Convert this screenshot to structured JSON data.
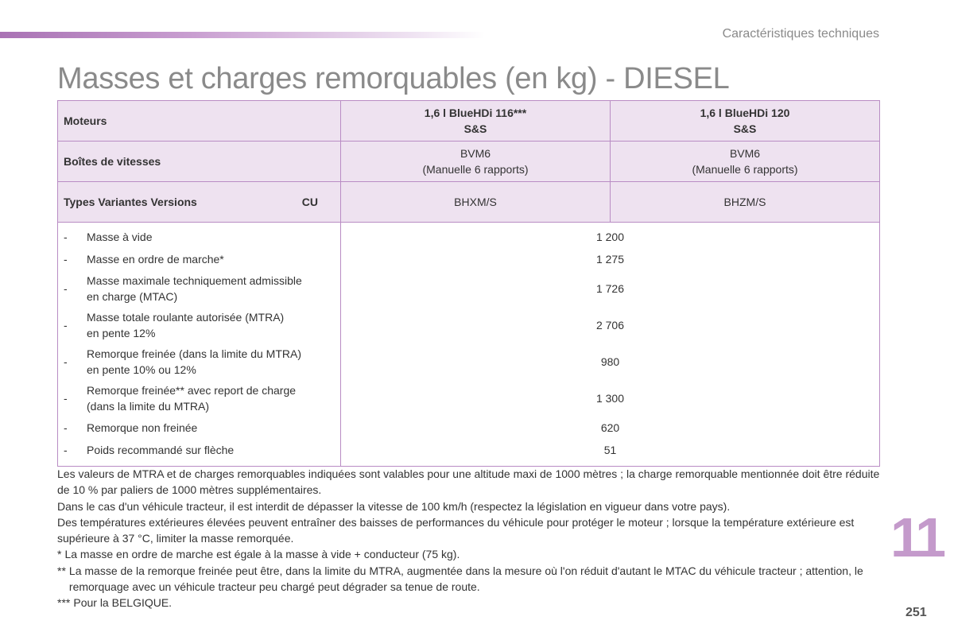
{
  "header": {
    "section": "Caractéristiques techniques",
    "title": "Masses et charges remorquables (en kg) - DIESEL"
  },
  "table": {
    "engines_label": "Moteurs",
    "engine1": [
      "1,6 l BlueHDi 116***",
      "S&S"
    ],
    "engine2": [
      "1,6 l BlueHDi 120",
      "S&S"
    ],
    "gearbox_label": "Boîtes de vitesses",
    "gearbox1": [
      "BVM6",
      "(Manuelle 6 rapports)"
    ],
    "gearbox2": [
      "BVM6",
      "(Manuelle 6 rapports)"
    ],
    "types_label": "Types Variantes Versions",
    "types_suffix": "CU",
    "type1": "BHXM/S",
    "type2": "BHZM/S",
    "mass_rows": [
      {
        "dash": "-",
        "lines": [
          "Masse à vide"
        ],
        "value": "1 200"
      },
      {
        "dash": "-",
        "lines": [
          "Masse en ordre de marche*"
        ],
        "value": "1 275"
      },
      {
        "dash": "-",
        "lines": [
          "Masse maximale techniquement admissible",
          "en charge (MTAC)"
        ],
        "value": "1 726"
      },
      {
        "dash": "-",
        "lines": [
          "Masse totale roulante autorisée (MTRA)",
          "en pente 12%"
        ],
        "value": "2 706"
      },
      {
        "dash": "-",
        "lines": [
          "Remorque freinée (dans la limite du MTRA)",
          "en pente 10% ou 12%"
        ],
        "value": "980"
      },
      {
        "dash": "-",
        "lines": [
          "Remorque freinée** avec report de charge",
          "(dans la limite du MTRA)"
        ],
        "value": "1 300"
      },
      {
        "dash": "-",
        "lines": [
          "Remorque non freinée"
        ],
        "value": "620"
      },
      {
        "dash": "-",
        "lines": [
          "Poids recommandé sur flèche"
        ],
        "value": "51"
      }
    ]
  },
  "notes": {
    "p1": "Les valeurs de MTRA et de charges remorquables indiquées sont valables pour une altitude maxi de 1000 mètres ; la charge remorquable mentionnée doit être réduite de 10 % par paliers de 1000 mètres supplémentaires.",
    "p2": "Dans le cas d'un véhicule tracteur, il est interdit de dépasser la vitesse de 100 km/h (respectez la législation en vigueur dans votre pays).",
    "p3": "Des températures extérieures élevées peuvent entraîner des baisses de performances du véhicule pour protéger le moteur ; lorsque la température extérieure est supérieure à 37 °C, limiter la masse remorquée.",
    "fn1_mark": "*",
    "fn1_text": "La masse en ordre de marche est égale à la masse à vide + conducteur (75 kg).",
    "fn2_mark": "**",
    "fn2_text": "La masse de la remorque freinée peut être, dans la limite du MTRA, augmentée dans la mesure où l'on réduit d'autant le MTAC du véhicule tracteur ; attention, le remorquage avec un véhicule tracteur peu chargé peut dégrader sa tenue de route.",
    "fn3_mark": "***",
    "fn3_text": "Pour la BELGIQUE."
  },
  "chapter_number": "11",
  "page_number": "251",
  "colors": {
    "accent": "#a972b4",
    "header_fill": "#eee2f0",
    "border": "#b98cc4",
    "chapter": "#c49acb"
  }
}
